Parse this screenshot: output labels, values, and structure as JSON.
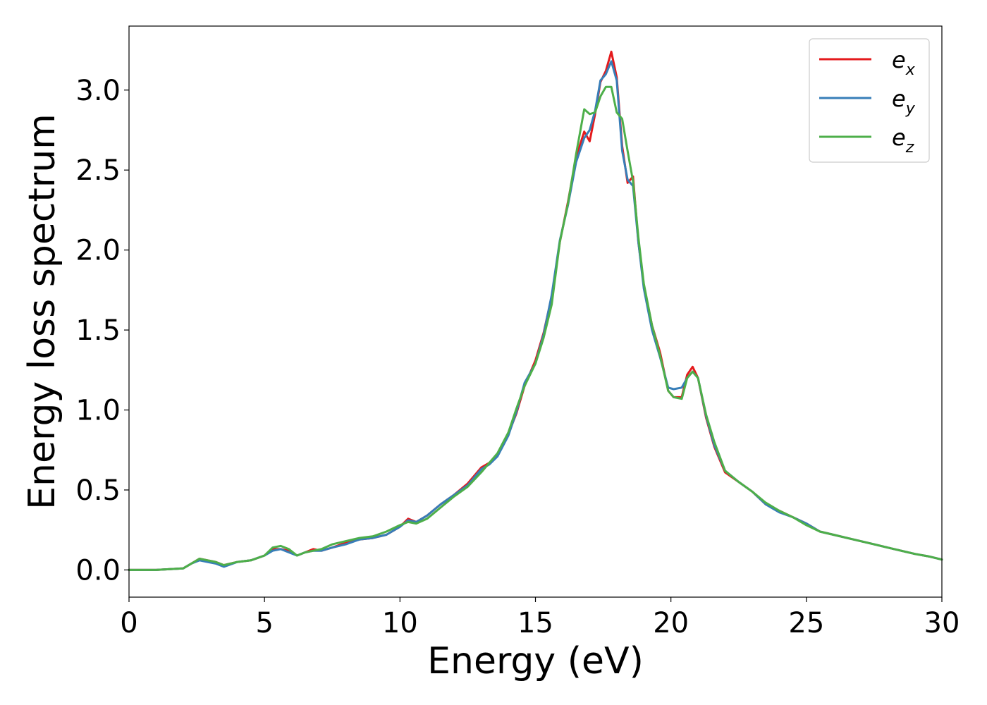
{
  "chart_data": {
    "type": "line",
    "xlabel": "Energy (eV)",
    "ylabel": "Energy loss spectrum",
    "xlim": [
      0,
      30
    ],
    "ylim": [
      -0.17,
      3.4
    ],
    "xticks": [
      0,
      5,
      10,
      15,
      20,
      25,
      30
    ],
    "xtick_labels": [
      "0",
      "5",
      "10",
      "15",
      "20",
      "25",
      "30"
    ],
    "yticks": [
      0.0,
      0.5,
      1.0,
      1.5,
      2.0,
      2.5,
      3.0
    ],
    "ytick_labels": [
      "0.0",
      "0.5",
      "1.0",
      "1.5",
      "2.0",
      "2.5",
      "3.0"
    ],
    "grid": false,
    "legend_position": "top-right",
    "series": [
      {
        "name": "e",
        "subscript": "x",
        "color": "#e41a1c",
        "x": [
          0,
          1,
          2,
          2.3,
          2.6,
          2.9,
          3.2,
          3.5,
          4,
          4.5,
          5,
          5.3,
          5.6,
          5.9,
          6.2,
          6.5,
          6.8,
          7.1,
          7.5,
          8,
          8.5,
          9,
          9.5,
          10,
          10.3,
          10.6,
          11,
          11.5,
          12,
          12.5,
          13,
          13.3,
          13.6,
          14,
          14.3,
          14.6,
          15,
          15.3,
          15.6,
          15.9,
          16.2,
          16.5,
          16.8,
          17.0,
          17.2,
          17.4,
          17.6,
          17.8,
          18.0,
          18.2,
          18.4,
          18.6,
          18.8,
          19.0,
          19.3,
          19.6,
          19.9,
          20.1,
          20.4,
          20.6,
          20.8,
          21.0,
          21.3,
          21.6,
          22,
          22.5,
          23,
          23.5,
          24,
          24.5,
          25,
          25.5,
          26,
          26.5,
          27,
          27.5,
          28,
          28.5,
          29,
          29.5,
          30
        ],
        "y": [
          0,
          0,
          0.01,
          0.04,
          0.07,
          0.06,
          0.05,
          0.03,
          0.05,
          0.06,
          0.09,
          0.13,
          0.13,
          0.12,
          0.09,
          0.11,
          0.13,
          0.12,
          0.14,
          0.17,
          0.19,
          0.2,
          0.22,
          0.27,
          0.32,
          0.3,
          0.34,
          0.41,
          0.47,
          0.54,
          0.64,
          0.67,
          0.72,
          0.85,
          0.98,
          1.15,
          1.31,
          1.48,
          1.71,
          2.05,
          2.3,
          2.58,
          2.74,
          2.68,
          2.85,
          3.05,
          3.12,
          3.24,
          3.08,
          2.65,
          2.42,
          2.46,
          2.05,
          1.78,
          1.53,
          1.36,
          1.12,
          1.08,
          1.08,
          1.22,
          1.27,
          1.2,
          0.95,
          0.77,
          0.61,
          0.55,
          0.49,
          0.41,
          0.37,
          0.33,
          0.29,
          0.24,
          0.22,
          0.2,
          0.18,
          0.16,
          0.14,
          0.12,
          0.1,
          0.085,
          0.065
        ]
      },
      {
        "name": "e",
        "subscript": "y",
        "color": "#377eb8",
        "x": [
          0,
          1,
          2,
          2.3,
          2.6,
          2.9,
          3.2,
          3.5,
          4,
          4.5,
          5,
          5.3,
          5.6,
          5.9,
          6.2,
          6.5,
          6.8,
          7.1,
          7.5,
          8,
          8.5,
          9,
          9.5,
          10,
          10.3,
          10.6,
          11,
          11.5,
          12,
          12.5,
          13,
          13.3,
          13.6,
          14,
          14.3,
          14.6,
          15,
          15.3,
          15.6,
          15.9,
          16.2,
          16.5,
          16.8,
          17.0,
          17.2,
          17.4,
          17.6,
          17.8,
          18.0,
          18.2,
          18.4,
          18.6,
          18.8,
          19.0,
          19.3,
          19.6,
          19.9,
          20.1,
          20.4,
          20.6,
          20.8,
          21.0,
          21.3,
          21.6,
          22,
          22.5,
          23,
          23.5,
          24,
          24.5,
          25,
          25.5,
          26,
          26.5,
          27,
          27.5,
          28,
          28.5,
          29,
          29.5,
          30
        ],
        "y": [
          0,
          0,
          0.01,
          0.04,
          0.06,
          0.05,
          0.04,
          0.02,
          0.05,
          0.06,
          0.09,
          0.12,
          0.13,
          0.11,
          0.09,
          0.11,
          0.12,
          0.12,
          0.14,
          0.16,
          0.19,
          0.2,
          0.22,
          0.27,
          0.31,
          0.3,
          0.34,
          0.41,
          0.47,
          0.53,
          0.63,
          0.66,
          0.71,
          0.84,
          0.99,
          1.17,
          1.29,
          1.47,
          1.72,
          2.06,
          2.28,
          2.55,
          2.7,
          2.75,
          2.87,
          3.06,
          3.1,
          3.18,
          3.06,
          2.62,
          2.44,
          2.4,
          2.05,
          1.76,
          1.5,
          1.33,
          1.14,
          1.13,
          1.14,
          1.2,
          1.24,
          1.2,
          0.96,
          0.78,
          0.62,
          0.55,
          0.49,
          0.41,
          0.36,
          0.33,
          0.29,
          0.24,
          0.22,
          0.2,
          0.18,
          0.16,
          0.14,
          0.12,
          0.1,
          0.085,
          0.065
        ]
      },
      {
        "name": "e",
        "subscript": "z",
        "color": "#4daf4a",
        "x": [
          0,
          1,
          2,
          2.3,
          2.6,
          2.9,
          3.2,
          3.5,
          4,
          4.5,
          5,
          5.3,
          5.6,
          5.9,
          6.2,
          6.5,
          6.8,
          7.1,
          7.5,
          8,
          8.5,
          9,
          9.5,
          10,
          10.3,
          10.6,
          11,
          11.5,
          12,
          12.5,
          13,
          13.3,
          13.6,
          14,
          14.3,
          14.6,
          15,
          15.3,
          15.6,
          15.9,
          16.2,
          16.5,
          16.8,
          17.0,
          17.2,
          17.4,
          17.6,
          17.8,
          18.0,
          18.2,
          18.4,
          18.6,
          18.8,
          19.0,
          19.3,
          19.6,
          19.9,
          20.1,
          20.4,
          20.6,
          20.8,
          21.0,
          21.3,
          21.6,
          22,
          22.5,
          23,
          23.5,
          24,
          24.5,
          25,
          25.5,
          26,
          26.5,
          27,
          27.5,
          28,
          28.5,
          29,
          29.5,
          30
        ],
        "y": [
          0,
          0,
          0.01,
          0.04,
          0.07,
          0.06,
          0.05,
          0.03,
          0.05,
          0.06,
          0.09,
          0.14,
          0.15,
          0.13,
          0.09,
          0.11,
          0.12,
          0.13,
          0.16,
          0.18,
          0.2,
          0.21,
          0.24,
          0.28,
          0.3,
          0.29,
          0.32,
          0.39,
          0.46,
          0.52,
          0.61,
          0.67,
          0.73,
          0.86,
          1.01,
          1.15,
          1.29,
          1.45,
          1.66,
          2.05,
          2.29,
          2.6,
          2.88,
          2.85,
          2.86,
          2.96,
          3.02,
          3.02,
          2.86,
          2.82,
          2.62,
          2.43,
          2.08,
          1.79,
          1.53,
          1.34,
          1.12,
          1.08,
          1.07,
          1.2,
          1.24,
          1.2,
          0.97,
          0.8,
          0.62,
          0.55,
          0.49,
          0.42,
          0.37,
          0.33,
          0.28,
          0.24,
          0.22,
          0.2,
          0.18,
          0.16,
          0.14,
          0.12,
          0.1,
          0.085,
          0.065
        ]
      }
    ]
  }
}
